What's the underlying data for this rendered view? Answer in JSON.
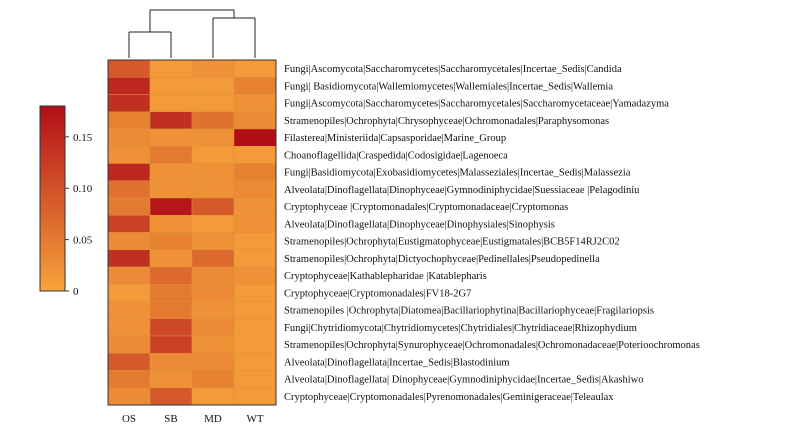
{
  "chart_data": {
    "type": "heatmap",
    "columns": [
      "OS",
      "SB",
      "MD",
      "WT"
    ],
    "rows": [
      "Fungi|Ascomycota|Saccharomycetes|Saccharomycetales|Incertae_Sedis|Candida",
      "Fungi| Basidiomycota|Wallemiomycetes|Wallemiales|Incertae_Sedis|Wallemia",
      "Fungi|Ascomycota|Saccharomycetes|Saccharomycetales|Saccharomycetaceae|Yamadazyma",
      "Stramenopiles|Ochrophyta|Chrysophyceae|Ochromonadales|Paraphysomonas",
      "Filasterea|Ministeriida|Capsasporidae|Marine_Group",
      "Choanoflagellida|Craspedida|Codosigidae|Lagenoeca",
      "Fungi|Basidiomycota|Exobasidiomycetes|Malasseziales|Incertae_Sedis|Malassezia",
      "Alveolata|Dinoflagellata|Dinophyceae|Gymnodiniphycidae|Suessiaceae |Pelagodiniu",
      "Cryptophyceae |Cryptomonadales|Cryptomonadaceae|Cryptomonas",
      "Alveolata|Dinoflagellata|Dinophyceae|Dinophysiales|Sinophysis",
      "Stramenopiles|Ochrophyta|Eustigmatophyceae|Eustigmatales|BCB5F14RJ2C02",
      "Stramenopiles|Ochrophyta|Dictyochophyceae|Pedinellales|Pseudopedinella",
      "Cryptophyceae|Kathablepharidae |Katablepharis",
      "Cryptophyceae|Cryptomonadales|FV18-2G7",
      "Stramenopiles |Ochrophyta|Diatomea|Bacillariophytina|Bacillariophyceae|Fragilariopsis",
      "Fungi|Chytridiomycota|Chytridiomycetes|Chytridiales|Chytridiaceae|Rhizophydium",
      "Stramenopiles|Ochrophyta|Synurophyceae|Ochromonadales|Ochromonadaceae|Poterioochromonas",
      "Alveolata|Dinoflagellata|Incertae_Sedis|Blastodinium",
      "Alveolata|Dinoflagellata| Dinophyceae|Gymnodiniphycidae|Incertae_Sedis|Akashiwo",
      "Cryptophyceae|Cryptomonadales|Pyrenomonadales|Geminigeraceae|Teleaulax"
    ],
    "values": [
      [
        0.09,
        0.01,
        0.02,
        0.01
      ],
      [
        0.15,
        0.01,
        0.01,
        0.04
      ],
      [
        0.14,
        0.01,
        0.01,
        0.02
      ],
      [
        0.04,
        0.14,
        0.06,
        0.03
      ],
      [
        0.03,
        0.02,
        0.02,
        0.18
      ],
      [
        0.02,
        0.05,
        0.01,
        0.01
      ],
      [
        0.15,
        0.02,
        0.02,
        0.04
      ],
      [
        0.06,
        0.02,
        0.02,
        0.03
      ],
      [
        0.05,
        0.17,
        0.09,
        0.02
      ],
      [
        0.12,
        0.02,
        0.01,
        0.02
      ],
      [
        0.03,
        0.04,
        0.02,
        0.01
      ],
      [
        0.14,
        0.02,
        0.07,
        0.01
      ],
      [
        0.03,
        0.07,
        0.03,
        0.02
      ],
      [
        0.01,
        0.05,
        0.03,
        0.01
      ],
      [
        0.02,
        0.05,
        0.02,
        0.01
      ],
      [
        0.02,
        0.11,
        0.03,
        0.01
      ],
      [
        0.03,
        0.12,
        0.02,
        0.01
      ],
      [
        0.09,
        0.03,
        0.03,
        0.01
      ],
      [
        0.05,
        0.02,
        0.04,
        0.01
      ],
      [
        0.03,
        0.09,
        0.01,
        0.01
      ]
    ],
    "colorbar": {
      "range": [
        0,
        0.18
      ],
      "ticks": [
        0,
        0.05,
        0.1,
        0.15
      ],
      "tick_labels": [
        "0",
        "0.05",
        "0.10",
        "0.15"
      ],
      "low_color": "#f7a33b",
      "high_color": "#b20e18"
    },
    "column_dendrogram": "((OS,SB),(MD,WT))",
    "title": "",
    "xlabel": "",
    "ylabel": ""
  }
}
